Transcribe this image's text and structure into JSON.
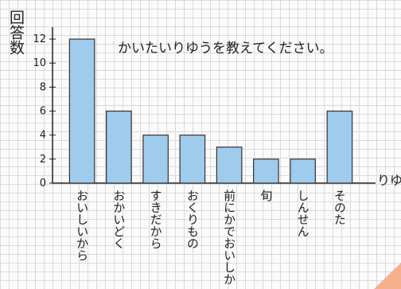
{
  "chart_data": {
    "type": "bar",
    "title": "かいたいりゆうを教えてください。",
    "y_label": "回答数",
    "x_label": "りゆ",
    "categories": [
      "おいしいから",
      "おかいどく",
      "すきだから",
      "おくりもの",
      "前にかでおいしか",
      "旬",
      "しんせん",
      "そのた"
    ],
    "values": [
      12,
      6,
      4,
      4,
      3,
      2,
      2,
      6
    ],
    "color": "#9fcbec",
    "ylim": [
      0,
      13
    ],
    "yticks": [
      0,
      2,
      4,
      6,
      8,
      10,
      12
    ]
  }
}
